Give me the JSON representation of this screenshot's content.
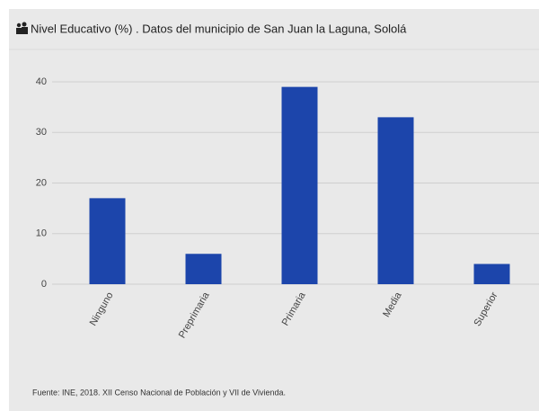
{
  "chart_data": {
    "type": "bar",
    "title": "Nivel Educativo (%) . Datos del municipio de San Juan la Laguna, Sololá",
    "categories": [
      "Ninguno",
      "Preprimaria",
      "Primaria",
      "Media",
      "Superior"
    ],
    "values": [
      17,
      6,
      39,
      33,
      4
    ],
    "color": "#1c45ab",
    "ylim": [
      0,
      40
    ],
    "yticks": [
      0,
      10,
      20,
      30,
      40
    ],
    "grid": true,
    "source": "Fuente: INE, 2018. XII Censo Nacional de Población y VII de Vivienda."
  }
}
